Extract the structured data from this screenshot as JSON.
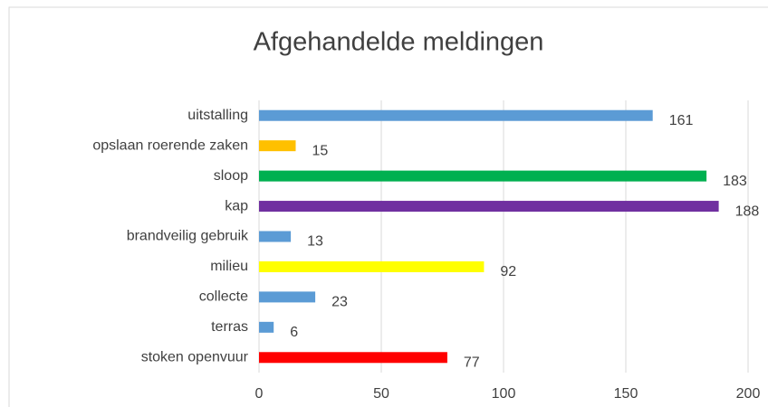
{
  "chart_data": {
    "type": "hbar",
    "title": "Afgehandelde meldingen",
    "categories": [
      "uitstalling",
      "opslaan roerende zaken",
      "sloop",
      "kap",
      "brandveilig gebruik",
      "milieu",
      "collecte",
      "terras",
      "stoken openvuur"
    ],
    "values": [
      161,
      15,
      183,
      188,
      13,
      92,
      23,
      6,
      77
    ],
    "colors": [
      "#5b9bd5",
      "#ffc000",
      "#00b050",
      "#7030a0",
      "#5b9bd5",
      "#ffff00",
      "#5b9bd5",
      "#5b9bd5",
      "#ff0000"
    ],
    "xlim": [
      0,
      200
    ],
    "xticks": [
      0,
      50,
      100,
      150,
      200
    ],
    "grid": true
  }
}
